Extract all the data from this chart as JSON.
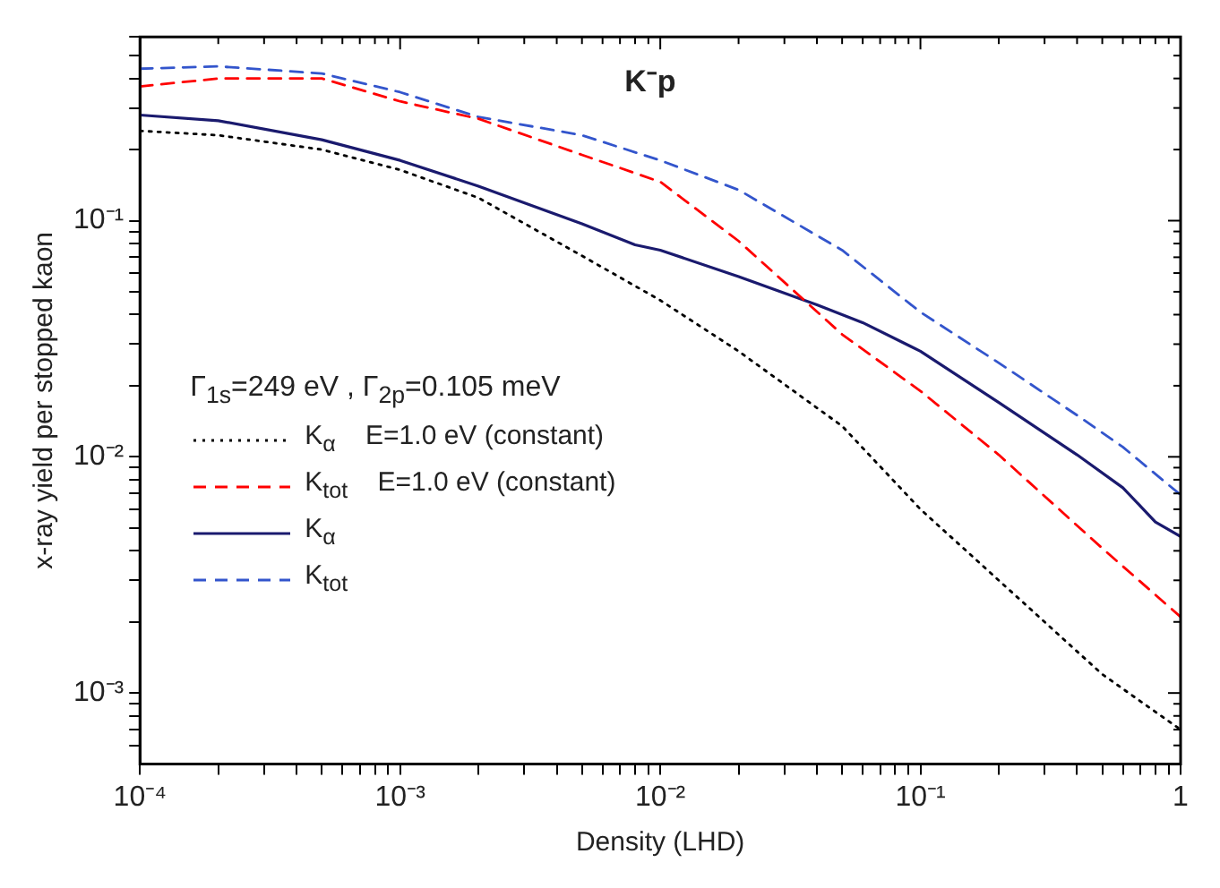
{
  "chart_data": {
    "type": "line",
    "title": "K⁻p",
    "xlabel": "Density (LHD)",
    "ylabel": "x-ray yield per stopped kaon",
    "legend_title": "Γ$_{1s}$=249 eV ,  Γ$_{2p}$=0.105 meV",
    "log": "xy",
    "grid": false,
    "legend": "left",
    "marker": "none",
    "xlim": [
      0.0001,
      1
    ],
    "ylim": [
      0.0005,
      0.6
    ],
    "xticks": [
      {
        "value": 0.0001,
        "label": "10⁻⁴"
      },
      {
        "value": 0.0002,
        "label": null
      },
      {
        "value": 0.0003,
        "label": null
      },
      {
        "value": 0.0004,
        "label": null
      },
      {
        "value": 0.0005,
        "label": null
      },
      {
        "value": 0.0006,
        "label": null
      },
      {
        "value": 0.0007,
        "label": null
      },
      {
        "value": 0.0008,
        "label": null
      },
      {
        "value": 0.0009,
        "label": null
      },
      {
        "value": 0.001,
        "label": "10⁻³"
      },
      {
        "value": 0.002,
        "label": null
      },
      {
        "value": 0.003,
        "label": null
      },
      {
        "value": 0.004,
        "label": null
      },
      {
        "value": 0.005,
        "label": null
      },
      {
        "value": 0.006,
        "label": null
      },
      {
        "value": 0.007,
        "label": null
      },
      {
        "value": 0.008,
        "label": null
      },
      {
        "value": 0.009,
        "label": null
      },
      {
        "value": 0.01,
        "label": "10⁻²"
      },
      {
        "value": 0.02,
        "label": null
      },
      {
        "value": 0.03,
        "label": null
      },
      {
        "value": 0.04,
        "label": null
      },
      {
        "value": 0.05,
        "label": null
      },
      {
        "value": 0.06,
        "label": null
      },
      {
        "value": 0.07,
        "label": null
      },
      {
        "value": 0.08,
        "label": null
      },
      {
        "value": 0.09,
        "label": null
      },
      {
        "value": 0.1,
        "label": "10⁻¹"
      },
      {
        "value": 0.2,
        "label": null
      },
      {
        "value": 0.3,
        "label": null
      },
      {
        "value": 0.4,
        "label": null
      },
      {
        "value": 0.5,
        "label": null
      },
      {
        "value": 0.6,
        "label": null
      },
      {
        "value": 0.7,
        "label": null
      },
      {
        "value": 0.8,
        "label": null
      },
      {
        "value": 0.9,
        "label": null
      },
      1
    ],
    "yticks": [
      {
        "value": 0.0006,
        "label": null
      },
      {
        "value": 0.0007,
        "label": null
      },
      {
        "value": 0.0008,
        "label": null
      },
      {
        "value": 0.0009,
        "label": null
      },
      {
        "value": 0.001,
        "label": "10⁻³"
      },
      {
        "value": 0.002,
        "label": null
      },
      {
        "value": 0.003,
        "label": null
      },
      {
        "value": 0.004,
        "label": null
      },
      {
        "value": 0.005,
        "label": null
      },
      {
        "value": 0.006,
        "label": null
      },
      {
        "value": 0.007,
        "label": null
      },
      {
        "value": 0.008,
        "label": null
      },
      {
        "value": 0.009,
        "label": null
      },
      {
        "value": 0.01,
        "label": "10⁻²"
      },
      {
        "value": 0.02,
        "label": null
      },
      {
        "value": 0.03,
        "label": null
      },
      {
        "value": 0.04,
        "label": null
      },
      {
        "value": 0.05,
        "label": null
      },
      {
        "value": 0.06,
        "label": null
      },
      {
        "value": 0.07,
        "label": null
      },
      {
        "value": 0.08,
        "label": null
      },
      {
        "value": 0.09,
        "label": null
      },
      {
        "value": 0.1,
        "label": "10⁻¹"
      },
      {
        "value": 0.2,
        "label": null
      },
      {
        "value": 0.3,
        "label": null
      },
      {
        "value": 0.4,
        "label": null
      },
      {
        "value": 0.5,
        "label": null
      },
      {
        "value": 0.6,
        "label": null
      }
    ],
    "series": [
      {
        "name": "K$_{α}$   E=1.0 eV (constant)",
        "color": "#000000",
        "line_style": "dotted",
        "x": [
          0.0001,
          0.0002,
          0.0005,
          0.001,
          0.002,
          0.005,
          0.01,
          0.02,
          0.05,
          0.1,
          0.2,
          0.5,
          1
        ],
        "values": [
          0.24,
          0.23,
          0.2,
          0.164,
          0.125,
          0.071,
          0.046,
          0.028,
          0.0135,
          0.006,
          0.003,
          0.0012,
          0.0007
        ]
      },
      {
        "name": "K$_{tot}$   E=1.0 eV (constant)",
        "color": "#ff0000",
        "line_style": "dashed",
        "x": [
          0.0001,
          0.0002,
          0.0005,
          0.001,
          0.002,
          0.005,
          0.01,
          0.02,
          0.05,
          0.1,
          0.2,
          0.5,
          1
        ],
        "values": [
          0.37,
          0.4,
          0.4,
          0.32,
          0.27,
          0.19,
          0.146,
          0.082,
          0.033,
          0.019,
          0.0102,
          0.0041,
          0.0021
        ]
      },
      {
        "name": "K$_{α}$",
        "color": "#1a1a6e",
        "line_style": "solid",
        "x": [
          0.0001,
          0.0002,
          0.0005,
          0.001,
          0.002,
          0.005,
          0.008,
          0.01,
          0.02,
          0.04,
          0.06,
          0.1,
          0.2,
          0.4,
          0.6,
          0.8,
          1
        ],
        "values": [
          0.28,
          0.265,
          0.22,
          0.18,
          0.14,
          0.097,
          0.079,
          0.075,
          0.058,
          0.044,
          0.037,
          0.028,
          0.017,
          0.0102,
          0.0074,
          0.0053,
          0.0046
        ]
      },
      {
        "name": "K$_{tot}$",
        "color": "#3355cc",
        "line_style": "dashed",
        "x": [
          0.0001,
          0.0002,
          0.0005,
          0.001,
          0.002,
          0.005,
          0.01,
          0.02,
          0.05,
          0.1,
          0.2,
          0.4,
          0.6,
          1
        ],
        "values": [
          0.44,
          0.45,
          0.42,
          0.35,
          0.275,
          0.23,
          0.18,
          0.135,
          0.075,
          0.041,
          0.025,
          0.015,
          0.011,
          0.0069
        ]
      }
    ]
  }
}
